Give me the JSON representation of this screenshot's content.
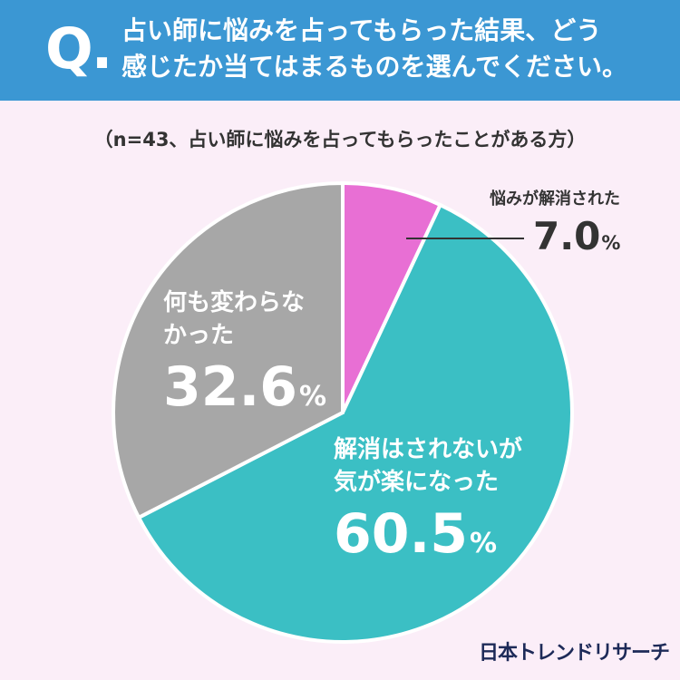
{
  "header": {
    "q_mark": "Q.",
    "question_line1": "占い師に悩みを占ってもらった結果、どう",
    "question_line2": "感じたか当てはまるものを選んでください。"
  },
  "note": "（n=43、占い師に悩みを占ってもらったことがある方）",
  "chart_data": {
    "type": "pie",
    "categories": [
      "悩みが解消された",
      "解消はされないが気が楽になった",
      "何も変わらなかった"
    ],
    "values": [
      7.0,
      60.5,
      32.6
    ],
    "colors": [
      "#e86fd4",
      "#3bbfc4",
      "#a7a7a7"
    ],
    "labels": {
      "pink": {
        "category": "悩みが解消された",
        "value": "7.0",
        "unit": "%"
      },
      "teal": {
        "line1": "解消はされないが",
        "line2": "気が楽になった",
        "value": "60.5",
        "unit": "%"
      },
      "gray": {
        "line1": "何も変わらな",
        "line2": "かった",
        "value": "32.6",
        "unit": "%"
      }
    }
  },
  "logo": "日本トレンドリサーチ"
}
